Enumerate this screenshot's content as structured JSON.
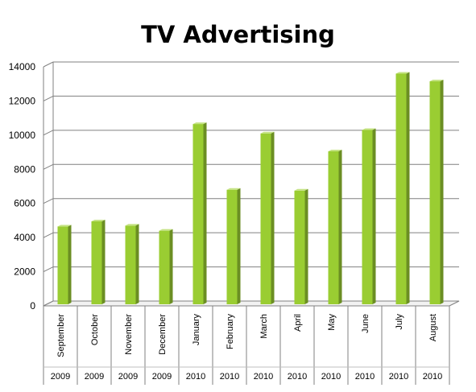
{
  "chart_data": {
    "type": "bar",
    "title": "TV Advertising",
    "xlabel": "",
    "ylabel": "",
    "ylim": [
      0,
      14000
    ],
    "yticks": [
      0,
      2000,
      4000,
      6000,
      8000,
      10000,
      12000,
      14000
    ],
    "grid": true,
    "categories": [
      "September",
      "October",
      "November",
      "December",
      "January",
      "February",
      "March",
      "April",
      "May",
      "June",
      "July",
      "August"
    ],
    "years": [
      "2009",
      "2009",
      "2009",
      "2009",
      "2010",
      "2010",
      "2010",
      "2010",
      "2010",
      "2010",
      "2010",
      "2010"
    ],
    "values": [
      4650,
      4950,
      4700,
      4400,
      10650,
      6800,
      10100,
      6750,
      9050,
      10300,
      13600,
      13150
    ],
    "colors": {
      "bar_front": "#9ACD32",
      "bar_side": "#6B8E23",
      "bar_top": "#C5E384",
      "grid": "#808080"
    }
  }
}
